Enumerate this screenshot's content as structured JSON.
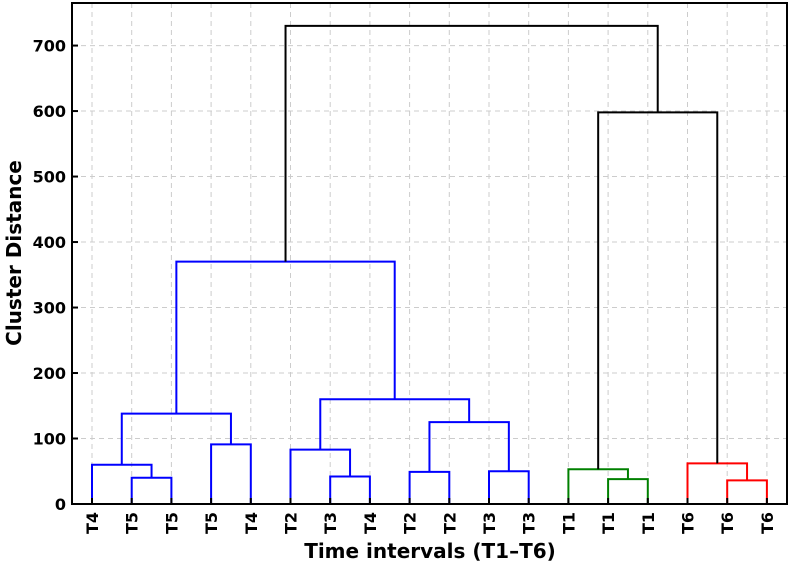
{
  "chart_data": {
    "type": "dendrogram",
    "xlabel": "Time intervals (T1–T6)",
    "ylabel": "Cluster Distance",
    "ylim": [
      0,
      765
    ],
    "yticks": [
      0,
      100,
      200,
      300,
      400,
      500,
      600,
      700
    ],
    "grid": true,
    "leaves": [
      "T4",
      "T5",
      "T5",
      "T5",
      "T4",
      "T2",
      "T3",
      "T4",
      "T2",
      "T2",
      "T3",
      "T3",
      "T1",
      "T1",
      "T1",
      "T6",
      "T6",
      "T6"
    ],
    "cluster_colors": {
      "blue": "#0000ff",
      "green": "#008000",
      "red": "#ff0000",
      "black": "#000000"
    },
    "merges": [
      {
        "id": "a",
        "left": 1,
        "right": 2,
        "height": 40,
        "color": "blue"
      },
      {
        "id": "b",
        "left": 0,
        "right": "a",
        "height": 60,
        "color": "blue"
      },
      {
        "id": "c",
        "left": 3,
        "right": 4,
        "height": 91,
        "color": "blue"
      },
      {
        "id": "d",
        "left": "b",
        "right": "c",
        "height": 138,
        "color": "blue"
      },
      {
        "id": "e",
        "left": 6,
        "right": 7,
        "height": 42,
        "color": "blue"
      },
      {
        "id": "f",
        "left": 5,
        "right": "e",
        "height": 83,
        "color": "blue"
      },
      {
        "id": "g",
        "left": 8,
        "right": 9,
        "height": 49,
        "color": "blue"
      },
      {
        "id": "h",
        "left": 10,
        "right": 11,
        "height": 50,
        "color": "blue"
      },
      {
        "id": "i",
        "left": "g",
        "right": "h",
        "height": 125,
        "color": "blue"
      },
      {
        "id": "j",
        "left": "f",
        "right": "i",
        "height": 160,
        "color": "blue"
      },
      {
        "id": "k",
        "left": "d",
        "right": "j",
        "height": 370,
        "color": "blue"
      },
      {
        "id": "l",
        "left": 13,
        "right": 14,
        "height": 38,
        "color": "green"
      },
      {
        "id": "m",
        "left": 12,
        "right": "l",
        "height": 53,
        "color": "green"
      },
      {
        "id": "n",
        "left": 16,
        "right": 17,
        "height": 36,
        "color": "red"
      },
      {
        "id": "o",
        "left": 15,
        "right": "n",
        "height": 62,
        "color": "red"
      },
      {
        "id": "p",
        "left": "m",
        "right": "o",
        "height": 598,
        "color": "black"
      },
      {
        "id": "q",
        "left": "k",
        "right": "p",
        "height": 730,
        "color": "black"
      }
    ]
  }
}
